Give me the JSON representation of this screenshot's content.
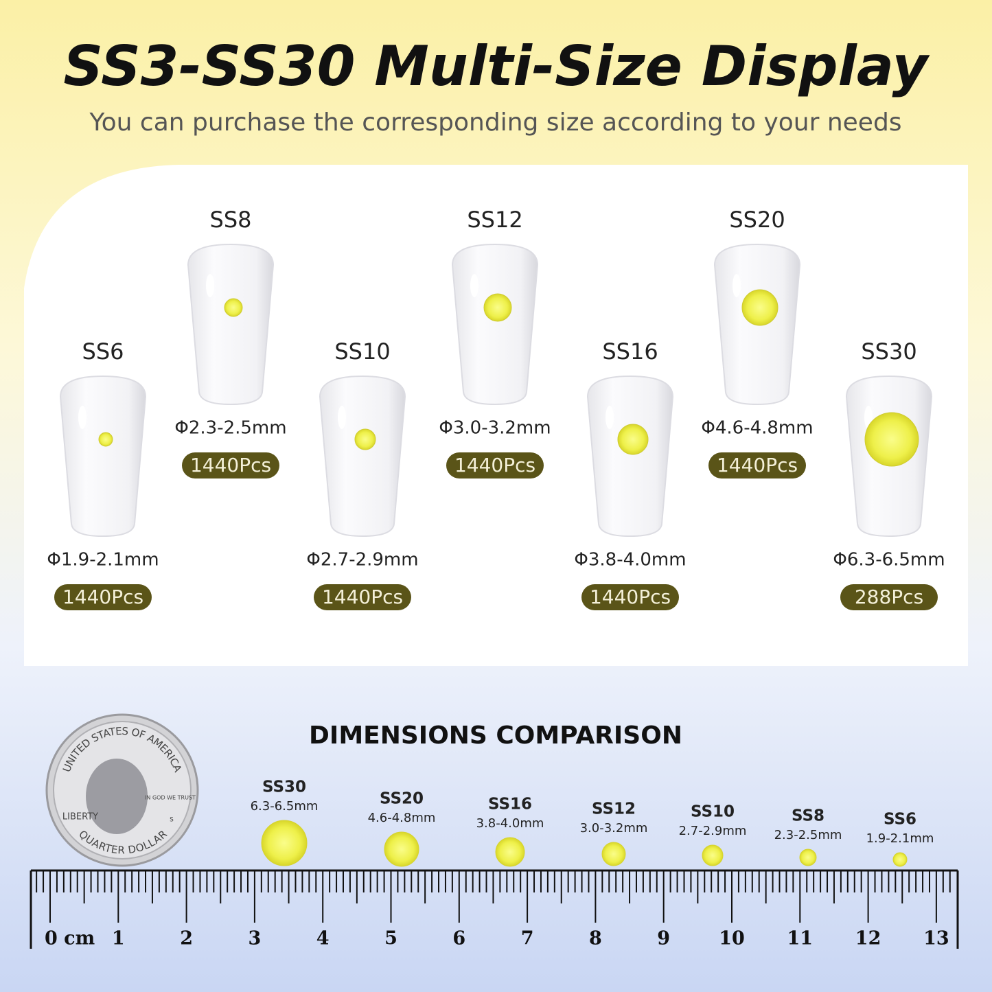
{
  "header": {
    "title": "SS3-SS30 Multi-Size Display",
    "subtitle": "You can purchase the corresponding size according to your needs"
  },
  "nails": [
    {
      "size": "SS6",
      "diameter": "Φ1.9-2.1mm",
      "count": "1440Pcs"
    },
    {
      "size": "SS8",
      "diameter": "Φ2.3-2.5mm",
      "count": "1440Pcs"
    },
    {
      "size": "SS10",
      "diameter": "Φ2.7-2.9mm",
      "count": "1440Pcs"
    },
    {
      "size": "SS12",
      "diameter": "Φ3.0-3.2mm",
      "count": "1440Pcs"
    },
    {
      "size": "SS16",
      "diameter": "Φ3.8-4.0mm",
      "count": "1440Pcs"
    },
    {
      "size": "SS20",
      "diameter": "Φ4.6-4.8mm",
      "count": "1440Pcs"
    },
    {
      "size": "SS30",
      "diameter": "Φ6.3-6.5mm",
      "count": "288Pcs"
    }
  ],
  "comparison": {
    "title": "DIMENSIONS COMPARISON",
    "items": [
      {
        "size": "SS30",
        "range": "6.3-6.5mm"
      },
      {
        "size": "SS20",
        "range": "4.6-4.8mm"
      },
      {
        "size": "SS16",
        "range": "3.8-4.0mm"
      },
      {
        "size": "SS12",
        "range": "3.0-3.2mm"
      },
      {
        "size": "SS10",
        "range": "2.7-2.9mm"
      },
      {
        "size": "SS8",
        "range": "2.3-2.5mm"
      },
      {
        "size": "SS6",
        "range": "1.9-2.1mm"
      }
    ]
  },
  "coin": {
    "top": "UNITED STATES OF AMERICA",
    "bottom": "QUARTER DOLLAR",
    "left": "LIBERTY",
    "motto": "IN GOD WE TRUST",
    "mint": "S"
  },
  "ruler": {
    "labels": [
      "0 cm",
      "1",
      "2",
      "3",
      "4",
      "5",
      "6",
      "7",
      "8",
      "9",
      "10",
      "11",
      "12",
      "13"
    ]
  }
}
